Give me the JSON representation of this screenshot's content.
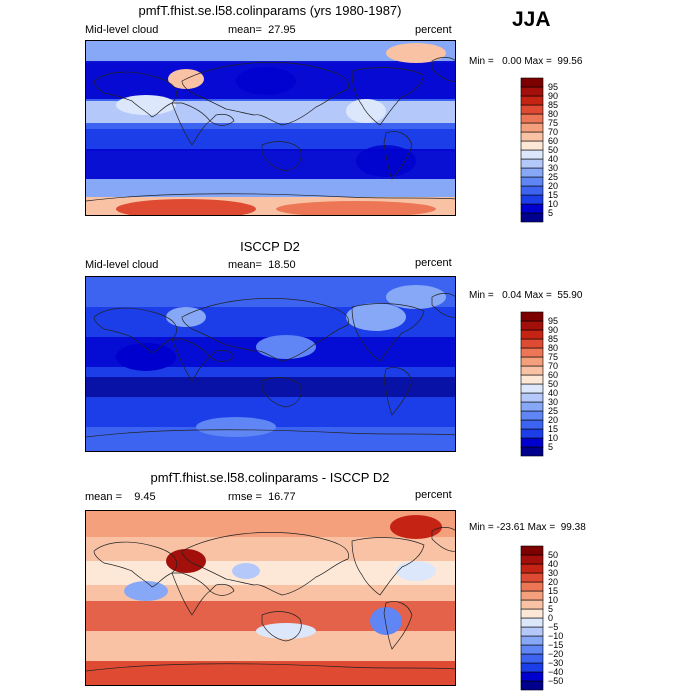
{
  "season": "JJA",
  "panels": [
    {
      "title": "pmfT.fhist.se.l58.colinparams (yrs 1980-1987)",
      "left_label": "Mid-level cloud",
      "stat_label": "mean=",
      "stat_value": "27.95",
      "stat2_label": "",
      "stat2_value": "",
      "units": "percent",
      "min_label": "Min =",
      "min_value": "0.00",
      "max_label": "Max =",
      "max_value": "99.56",
      "colorbar_levels": [
        "5",
        "10",
        "15",
        "20",
        "25",
        "30",
        "40",
        "50",
        "60",
        "70",
        "75",
        "80",
        "85",
        "90",
        "95"
      ]
    },
    {
      "title": "ISCCP D2",
      "left_label": "Mid-level cloud",
      "stat_label": "mean=",
      "stat_value": "18.50",
      "stat2_label": "",
      "stat2_value": "",
      "units": "percent",
      "min_label": "Min =",
      "min_value": "0.04",
      "max_label": "Max =",
      "max_value": "55.90",
      "colorbar_levels": [
        "5",
        "10",
        "15",
        "20",
        "25",
        "30",
        "40",
        "50",
        "60",
        "70",
        "75",
        "80",
        "85",
        "90",
        "95"
      ]
    },
    {
      "title": "pmfT.fhist.se.l58.colinparams - ISCCP D2",
      "left_label": "mean =",
      "stat_label": "",
      "stat_value": "9.45",
      "stat2_label": "rmse =",
      "stat2_value": "16.77",
      "units": "percent",
      "min_label": "Min =",
      "min_value": "-23.61",
      "max_label": "Max =",
      "max_value": "99.38",
      "colorbar_levels": [
        "−50",
        "−40",
        "−30",
        "−20",
        "−15",
        "−10",
        "−5",
        "0",
        "5",
        "10",
        "15",
        "20",
        "30",
        "40",
        "50"
      ]
    }
  ],
  "chart_data": [
    {
      "type": "heatmap",
      "title": "pmfT.fhist.se.l58.colinparams (yrs 1980-1987)",
      "field": "Mid-level cloud",
      "units": "percent",
      "mean": 27.95,
      "min": 0.0,
      "max": 99.56,
      "contour_levels": [
        5,
        10,
        15,
        20,
        25,
        30,
        40,
        50,
        60,
        70,
        75,
        80,
        85,
        90,
        95
      ],
      "colors": [
        "#00008c",
        "#0000ce",
        "#1c3ee8",
        "#3d64f0",
        "#5f86f4",
        "#86a8f7",
        "#b4c9fa",
        "#dde7fc",
        "#fde8d8",
        "#f9c2a4",
        "#f4a07c",
        "#ec7655",
        "#de4a32",
        "#c52414",
        "#a30f0a",
        "#7d0000"
      ]
    },
    {
      "type": "heatmap",
      "title": "ISCCP D2",
      "field": "Mid-level cloud",
      "units": "percent",
      "mean": 18.5,
      "min": 0.04,
      "max": 55.9,
      "contour_levels": [
        5,
        10,
        15,
        20,
        25,
        30,
        40,
        50,
        60,
        70,
        75,
        80,
        85,
        90,
        95
      ],
      "colors": [
        "#00008c",
        "#0000ce",
        "#1c3ee8",
        "#3d64f0",
        "#5f86f4",
        "#86a8f7",
        "#b4c9fa",
        "#dde7fc",
        "#fde8d8",
        "#f9c2a4",
        "#f4a07c",
        "#ec7655",
        "#de4a32",
        "#c52414",
        "#a30f0a",
        "#7d0000"
      ]
    },
    {
      "type": "heatmap",
      "title": "pmfT.fhist.se.l58.colinparams - ISCCP D2",
      "units": "percent",
      "mean": 9.45,
      "rmse": 16.77,
      "min": -23.61,
      "max": 99.38,
      "contour_levels": [
        -50,
        -40,
        -30,
        -20,
        -15,
        -10,
        -5,
        0,
        5,
        10,
        15,
        20,
        30,
        40,
        50
      ],
      "colors": [
        "#00008c",
        "#0000ce",
        "#1c3ee8",
        "#3d64f0",
        "#5f86f4",
        "#86a8f7",
        "#b4c9fa",
        "#dde7fc",
        "#fde8d8",
        "#f9c2a4",
        "#f4a07c",
        "#ec7655",
        "#de4a32",
        "#c52414",
        "#a30f0a",
        "#7d0000"
      ]
    }
  ]
}
